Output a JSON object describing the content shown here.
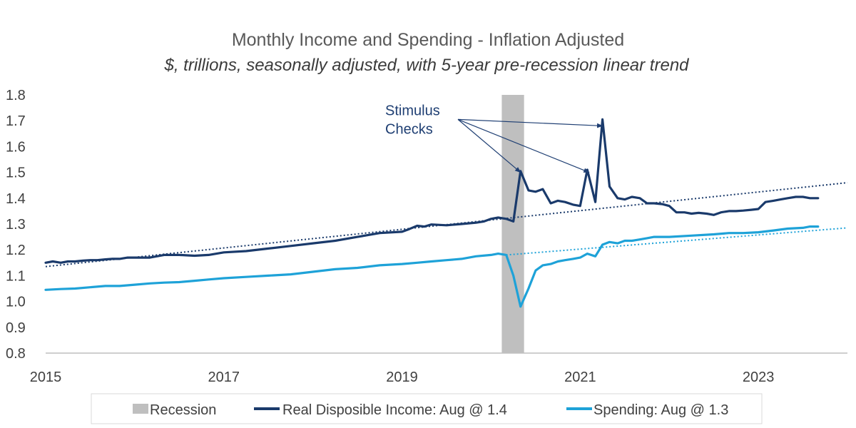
{
  "chart_data": {
    "type": "line",
    "title": "Monthly Income and Spending - Inflation Adjusted",
    "subtitle": "$, trillions, seasonally adjusted, with 5-year pre-recession linear trend",
    "xlabel": "",
    "ylabel": "",
    "x_ticks": [
      "2015",
      "2017",
      "2019",
      "2021",
      "2023"
    ],
    "y_ticks": [
      "0.8",
      "0.9",
      "1.0",
      "1.1",
      "1.2",
      "1.3",
      "1.4",
      "1.5",
      "1.6",
      "1.7",
      "1.8"
    ],
    "xlim": [
      2015.0,
      2024.0
    ],
    "ylim": [
      0.8,
      1.8
    ],
    "grid": false,
    "colors": {
      "income": "#1a3a6b",
      "spending": "#1ea2d8",
      "recession": "#bfbfbf",
      "annotation": "#1f3f73",
      "axis": "#bfbfbf"
    },
    "recession": {
      "start": 2020.12,
      "end": 2020.37
    },
    "series": [
      {
        "name": "Real Disposible Income: Aug @ 1.4",
        "points": [
          [
            2015.0,
            1.15
          ],
          [
            2015.08,
            1.155
          ],
          [
            2015.17,
            1.15
          ],
          [
            2015.25,
            1.155
          ],
          [
            2015.33,
            1.155
          ],
          [
            2015.42,
            1.158
          ],
          [
            2015.5,
            1.16
          ],
          [
            2015.58,
            1.16
          ],
          [
            2015.67,
            1.163
          ],
          [
            2015.75,
            1.165
          ],
          [
            2015.83,
            1.165
          ],
          [
            2015.92,
            1.17
          ],
          [
            2016.0,
            1.17
          ],
          [
            2016.17,
            1.17
          ],
          [
            2016.33,
            1.18
          ],
          [
            2016.5,
            1.18
          ],
          [
            2016.67,
            1.177
          ],
          [
            2016.83,
            1.18
          ],
          [
            2017.0,
            1.19
          ],
          [
            2017.25,
            1.195
          ],
          [
            2017.5,
            1.205
          ],
          [
            2017.75,
            1.215
          ],
          [
            2018.0,
            1.225
          ],
          [
            2018.25,
            1.235
          ],
          [
            2018.5,
            1.25
          ],
          [
            2018.75,
            1.265
          ],
          [
            2019.0,
            1.27
          ],
          [
            2019.08,
            1.28
          ],
          [
            2019.17,
            1.293
          ],
          [
            2019.25,
            1.29
          ],
          [
            2019.33,
            1.298
          ],
          [
            2019.5,
            1.295
          ],
          [
            2019.67,
            1.3
          ],
          [
            2019.83,
            1.305
          ],
          [
            2019.92,
            1.31
          ],
          [
            2020.0,
            1.32
          ],
          [
            2020.08,
            1.325
          ],
          [
            2020.17,
            1.32
          ],
          [
            2020.25,
            1.31
          ],
          [
            2020.33,
            1.505
          ],
          [
            2020.42,
            1.43
          ],
          [
            2020.5,
            1.425
          ],
          [
            2020.58,
            1.435
          ],
          [
            2020.67,
            1.38
          ],
          [
            2020.75,
            1.39
          ],
          [
            2020.83,
            1.385
          ],
          [
            2020.92,
            1.375
          ],
          [
            2021.0,
            1.37
          ],
          [
            2021.08,
            1.51
          ],
          [
            2021.17,
            1.385
          ],
          [
            2021.25,
            1.705
          ],
          [
            2021.33,
            1.445
          ],
          [
            2021.42,
            1.4
          ],
          [
            2021.5,
            1.395
          ],
          [
            2021.58,
            1.405
          ],
          [
            2021.67,
            1.4
          ],
          [
            2021.75,
            1.38
          ],
          [
            2021.83,
            1.38
          ],
          [
            2021.92,
            1.377
          ],
          [
            2022.0,
            1.37
          ],
          [
            2022.08,
            1.345
          ],
          [
            2022.17,
            1.345
          ],
          [
            2022.25,
            1.34
          ],
          [
            2022.33,
            1.343
          ],
          [
            2022.42,
            1.34
          ],
          [
            2022.5,
            1.335
          ],
          [
            2022.58,
            1.345
          ],
          [
            2022.67,
            1.35
          ],
          [
            2022.75,
            1.35
          ],
          [
            2022.83,
            1.352
          ],
          [
            2022.92,
            1.355
          ],
          [
            2023.0,
            1.358
          ],
          [
            2023.08,
            1.385
          ],
          [
            2023.17,
            1.39
          ],
          [
            2023.25,
            1.395
          ],
          [
            2023.33,
            1.4
          ],
          [
            2023.42,
            1.405
          ],
          [
            2023.5,
            1.405
          ],
          [
            2023.58,
            1.4
          ],
          [
            2023.67,
            1.4
          ]
        ]
      },
      {
        "name": "Spending: Aug @ 1.3",
        "points": [
          [
            2015.0,
            1.045
          ],
          [
            2015.17,
            1.048
          ],
          [
            2015.33,
            1.05
          ],
          [
            2015.5,
            1.055
          ],
          [
            2015.67,
            1.06
          ],
          [
            2015.83,
            1.06
          ],
          [
            2016.0,
            1.065
          ],
          [
            2016.17,
            1.07
          ],
          [
            2016.33,
            1.073
          ],
          [
            2016.5,
            1.075
          ],
          [
            2016.67,
            1.08
          ],
          [
            2016.83,
            1.085
          ],
          [
            2017.0,
            1.09
          ],
          [
            2017.25,
            1.095
          ],
          [
            2017.5,
            1.1
          ],
          [
            2017.75,
            1.105
          ],
          [
            2018.0,
            1.115
          ],
          [
            2018.25,
            1.125
          ],
          [
            2018.5,
            1.13
          ],
          [
            2018.75,
            1.14
          ],
          [
            2019.0,
            1.145
          ],
          [
            2019.17,
            1.15
          ],
          [
            2019.33,
            1.155
          ],
          [
            2019.5,
            1.16
          ],
          [
            2019.67,
            1.165
          ],
          [
            2019.83,
            1.175
          ],
          [
            2020.0,
            1.18
          ],
          [
            2020.08,
            1.185
          ],
          [
            2020.17,
            1.18
          ],
          [
            2020.25,
            1.1
          ],
          [
            2020.33,
            0.98
          ],
          [
            2020.42,
            1.05
          ],
          [
            2020.5,
            1.12
          ],
          [
            2020.58,
            1.14
          ],
          [
            2020.67,
            1.145
          ],
          [
            2020.75,
            1.155
          ],
          [
            2020.83,
            1.16
          ],
          [
            2020.92,
            1.165
          ],
          [
            2021.0,
            1.17
          ],
          [
            2021.08,
            1.185
          ],
          [
            2021.17,
            1.175
          ],
          [
            2021.25,
            1.22
          ],
          [
            2021.33,
            1.23
          ],
          [
            2021.42,
            1.225
          ],
          [
            2021.5,
            1.235
          ],
          [
            2021.58,
            1.235
          ],
          [
            2021.67,
            1.24
          ],
          [
            2021.75,
            1.245
          ],
          [
            2021.83,
            1.25
          ],
          [
            2022.0,
            1.25
          ],
          [
            2022.25,
            1.255
          ],
          [
            2022.5,
            1.26
          ],
          [
            2022.67,
            1.265
          ],
          [
            2022.83,
            1.265
          ],
          [
            2023.0,
            1.268
          ],
          [
            2023.17,
            1.275
          ],
          [
            2023.33,
            1.282
          ],
          [
            2023.5,
            1.285
          ],
          [
            2023.58,
            1.29
          ],
          [
            2023.67,
            1.29
          ]
        ]
      }
    ],
    "trends": [
      {
        "series": "Real Disposible Income",
        "pre_end": 2020.12,
        "from": [
          2015.0,
          1.135
        ],
        "to": [
          2024.0,
          1.46
        ]
      },
      {
        "series": "Spending",
        "from": [
          2020.17,
          1.18
        ],
        "to": [
          2024.0,
          1.285
        ]
      }
    ],
    "annotations": [
      {
        "lines": [
          "Stimulus",
          "Checks"
        ],
        "anchor": [
          2019.9,
          1.705
        ],
        "arrow_from": [
          2020.2,
          1.68
        ],
        "arrow_targets": [
          [
            2020.33,
            1.5
          ],
          [
            2021.1,
            1.5
          ],
          [
            2021.25,
            1.68
          ]
        ]
      }
    ],
    "legend": {
      "position": "bottom",
      "entries": [
        {
          "label": "Recession",
          "type": "box",
          "color_key": "recession"
        },
        {
          "label": "Real Disposible Income: Aug @ 1.4",
          "type": "line",
          "color_key": "income"
        },
        {
          "label": "Spending: Aug @ 1.3",
          "type": "line",
          "color_key": "spending"
        }
      ]
    }
  }
}
